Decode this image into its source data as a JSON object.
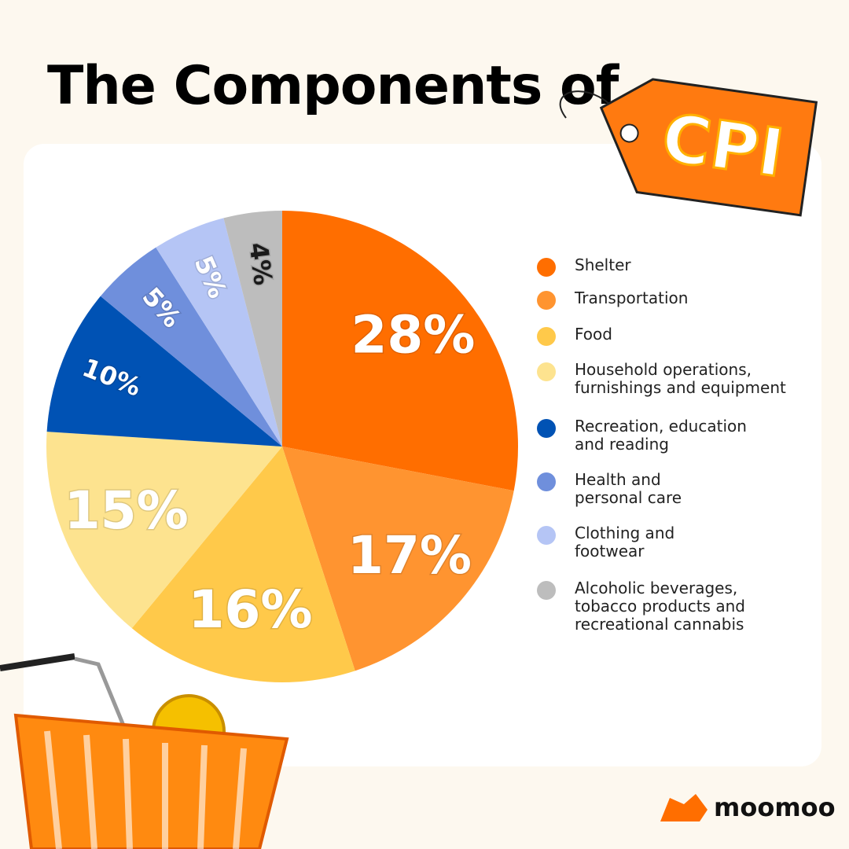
{
  "chart_data": {
    "type": "pie",
    "title": "The Components of",
    "tag": "CPI",
    "brand": "moomoo",
    "categories": [
      "Shelter",
      "Transportation",
      "Food",
      "Household operations,\nfurnishings and equipment",
      "Recreation, education\nand reading",
      "Health and\npersonal care",
      "Clothing and\nfootwear",
      "Alcoholic beverages,\ntobacco products and\nrecreational cannabis"
    ],
    "values": [
      28,
      17,
      16,
      15,
      10,
      5,
      5,
      4
    ],
    "value_labels": [
      "28%",
      "17%",
      "16%",
      "15%",
      "10%",
      "5%",
      "5%",
      "4%"
    ],
    "colors": [
      "#ff6e00",
      "#ff9430",
      "#ffc94a",
      "#fde38f",
      "#0052b4",
      "#6f8fdc",
      "#b5c5f5",
      "#bdbdbd"
    ],
    "label_colors": [
      "#ffffff",
      "#ffffff",
      "#ffffff",
      "#ffffff",
      "#ffffff",
      "#ffffff",
      "#ffffff",
      "#1a1a1a"
    ],
    "legend": "right"
  }
}
